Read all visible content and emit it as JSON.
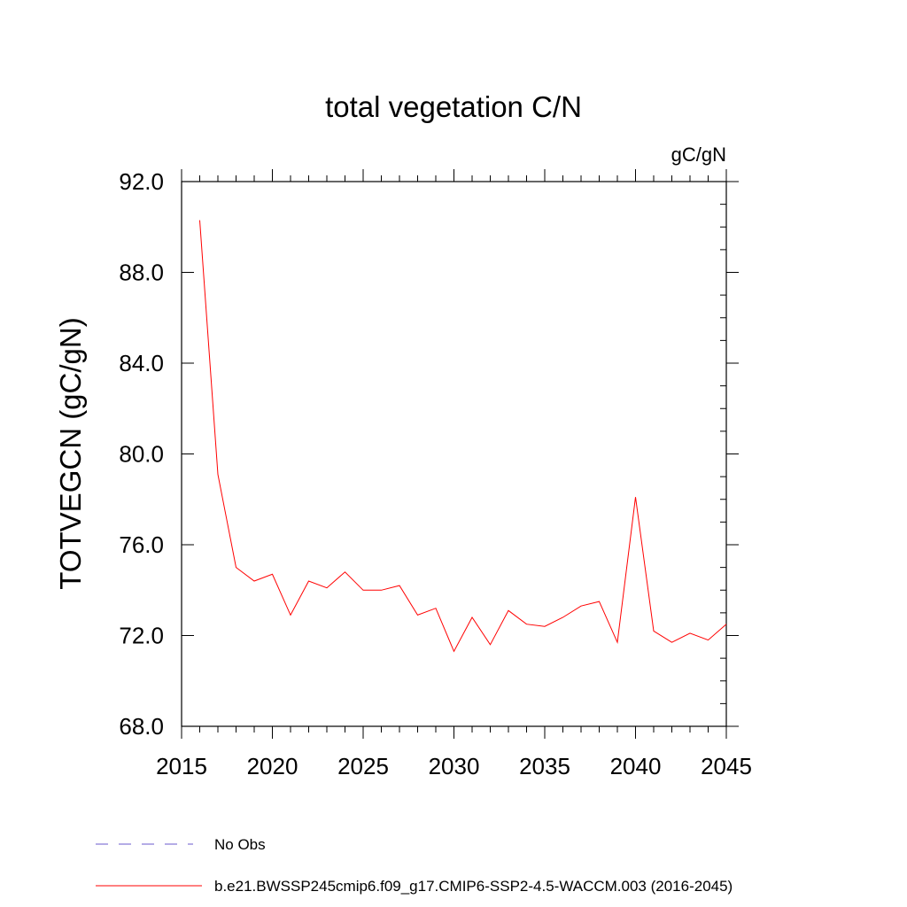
{
  "chart_data": {
    "type": "line",
    "title": "total vegetation C/N",
    "units": "gC/gN",
    "xlabel": "",
    "ylabel": "TOTVEGCN  (gC/gN)",
    "xlim": [
      2015,
      2045
    ],
    "ylim": [
      68,
      92
    ],
    "x_ticks": [
      2015,
      2020,
      2025,
      2030,
      2035,
      2040,
      2045
    ],
    "y_ticks": [
      68,
      72,
      76,
      80,
      84,
      88,
      92
    ],
    "x_tick_labels": [
      "2015",
      "2020",
      "2025",
      "2030",
      "2035",
      "2040",
      "2045"
    ],
    "y_tick_labels": [
      "68.0",
      "72.0",
      "76.0",
      "80.0",
      "84.0",
      "88.0",
      "92.0"
    ],
    "legend": [
      {
        "label": "No Obs",
        "style": "dashed",
        "color": "#6a5acd"
      },
      {
        "label": "b.e21.BWSSP245cmip6.f09_g17.CMIP6-SSP2-4.5-WACCM.003 (2016-2045)",
        "style": "solid",
        "color": "#ff0000"
      }
    ],
    "series": [
      {
        "name": "b.e21.BWSSP245cmip6.f09_g17.CMIP6-SSP2-4.5-WACCM.003 (2016-2045)",
        "color": "#ff0000",
        "x": [
          2016,
          2017,
          2018,
          2019,
          2020,
          2021,
          2022,
          2023,
          2024,
          2025,
          2026,
          2027,
          2028,
          2029,
          2030,
          2031,
          2032,
          2033,
          2034,
          2035,
          2036,
          2037,
          2038,
          2039,
          2040,
          2041,
          2042,
          2043,
          2044,
          2045
        ],
        "values": [
          90.3,
          79.1,
          75.0,
          74.4,
          74.7,
          72.9,
          74.4,
          74.1,
          74.8,
          74.0,
          74.0,
          74.2,
          72.9,
          73.2,
          71.3,
          72.8,
          71.6,
          73.1,
          72.5,
          72.4,
          72.8,
          73.3,
          73.5,
          71.7,
          78.1,
          72.2,
          71.7,
          72.1,
          71.8,
          72.5
        ]
      }
    ]
  }
}
